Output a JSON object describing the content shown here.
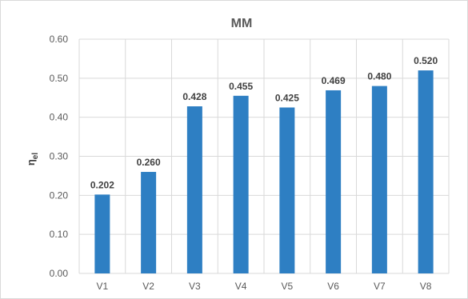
{
  "chart_data": {
    "type": "bar",
    "title": "MM",
    "xlabel": "",
    "ylabel": "η",
    "ylabel_subscript": "el",
    "categories": [
      "V1",
      "V2",
      "V3",
      "V4",
      "V5",
      "V6",
      "V7",
      "V8"
    ],
    "values": [
      0.202,
      0.26,
      0.428,
      0.455,
      0.425,
      0.469,
      0.48,
      0.52
    ],
    "value_labels": [
      "0.202",
      "0.260",
      "0.428",
      "0.455",
      "0.425",
      "0.469",
      "0.480",
      "0.520"
    ],
    "ylim": [
      0,
      0.6
    ],
    "yticks": [
      0,
      0.1,
      0.2,
      0.3,
      0.4,
      0.5,
      0.6
    ],
    "ytick_labels": [
      "0.00",
      "0.10",
      "0.20",
      "0.30",
      "0.40",
      "0.50",
      "0.60"
    ],
    "grid": true,
    "legend": "none",
    "bar_color": "#2e7fc3",
    "grid_color": "#d9d9d9"
  }
}
